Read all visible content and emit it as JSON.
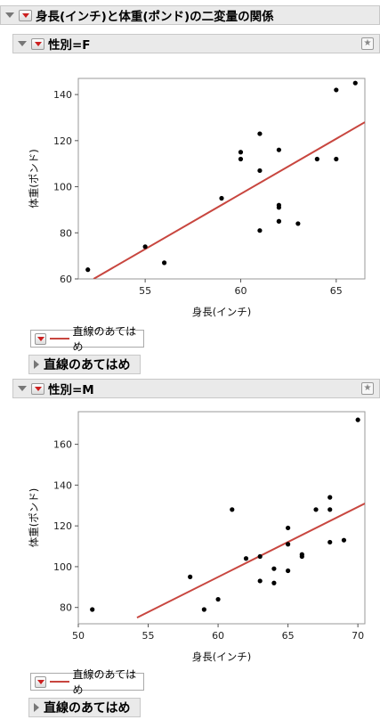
{
  "report": {
    "title": "身長(インチ)と体重(ポンド)の二変量の関係"
  },
  "groups": [
    {
      "title": "性別=F",
      "legend_label": "直線のあてはめ",
      "fit_section_label": "直線のあてはめ"
    },
    {
      "title": "性別=M",
      "legend_label": "直線のあてはめ",
      "fit_section_label": "直線のあてはめ"
    }
  ],
  "colors": {
    "fit_line": "#c8463f",
    "points": "#000000",
    "header_bg": "#eaeaea"
  },
  "chart_data": [
    {
      "type": "scatter",
      "xlabel": "身長(インチ)",
      "ylabel": "体重(ポンド)",
      "xlim": [
        51.5,
        66.5
      ],
      "ylim": [
        60,
        147
      ],
      "xticks": [
        55,
        60,
        65
      ],
      "yticks": [
        60,
        80,
        100,
        120,
        140
      ],
      "x": [
        52,
        55,
        56,
        59,
        60,
        60,
        61,
        61,
        61,
        62,
        62,
        62,
        62,
        62,
        63,
        64,
        65,
        65,
        66
      ],
      "y": [
        64,
        74,
        67,
        95,
        115,
        112,
        123,
        107,
        81,
        116,
        92,
        91,
        85,
        85,
        84,
        112,
        142,
        112,
        145
      ],
      "fit_line": {
        "x": [
          52.3,
          66.5
        ],
        "y": [
          60,
          128
        ]
      }
    },
    {
      "type": "scatter",
      "xlabel": "身長(インチ)",
      "ylabel": "体重(ポンド)",
      "xlim": [
        50,
        70.5
      ],
      "ylim": [
        72,
        176
      ],
      "xticks": [
        50,
        55,
        60,
        65,
        70
      ],
      "yticks": [
        80,
        100,
        120,
        140,
        160
      ],
      "x": [
        51,
        58,
        59,
        60,
        61,
        62,
        63,
        63,
        64,
        64,
        65,
        65,
        65,
        66,
        66,
        67,
        68,
        68,
        68,
        69,
        70
      ],
      "y": [
        79,
        95,
        79,
        84,
        128,
        104,
        105,
        93,
        99,
        92,
        119,
        111,
        98,
        106,
        105,
        128,
        134,
        128,
        112,
        113,
        172
      ],
      "fit_line": {
        "x": [
          54.2,
          70.5
        ],
        "y": [
          75,
          131
        ]
      }
    }
  ]
}
